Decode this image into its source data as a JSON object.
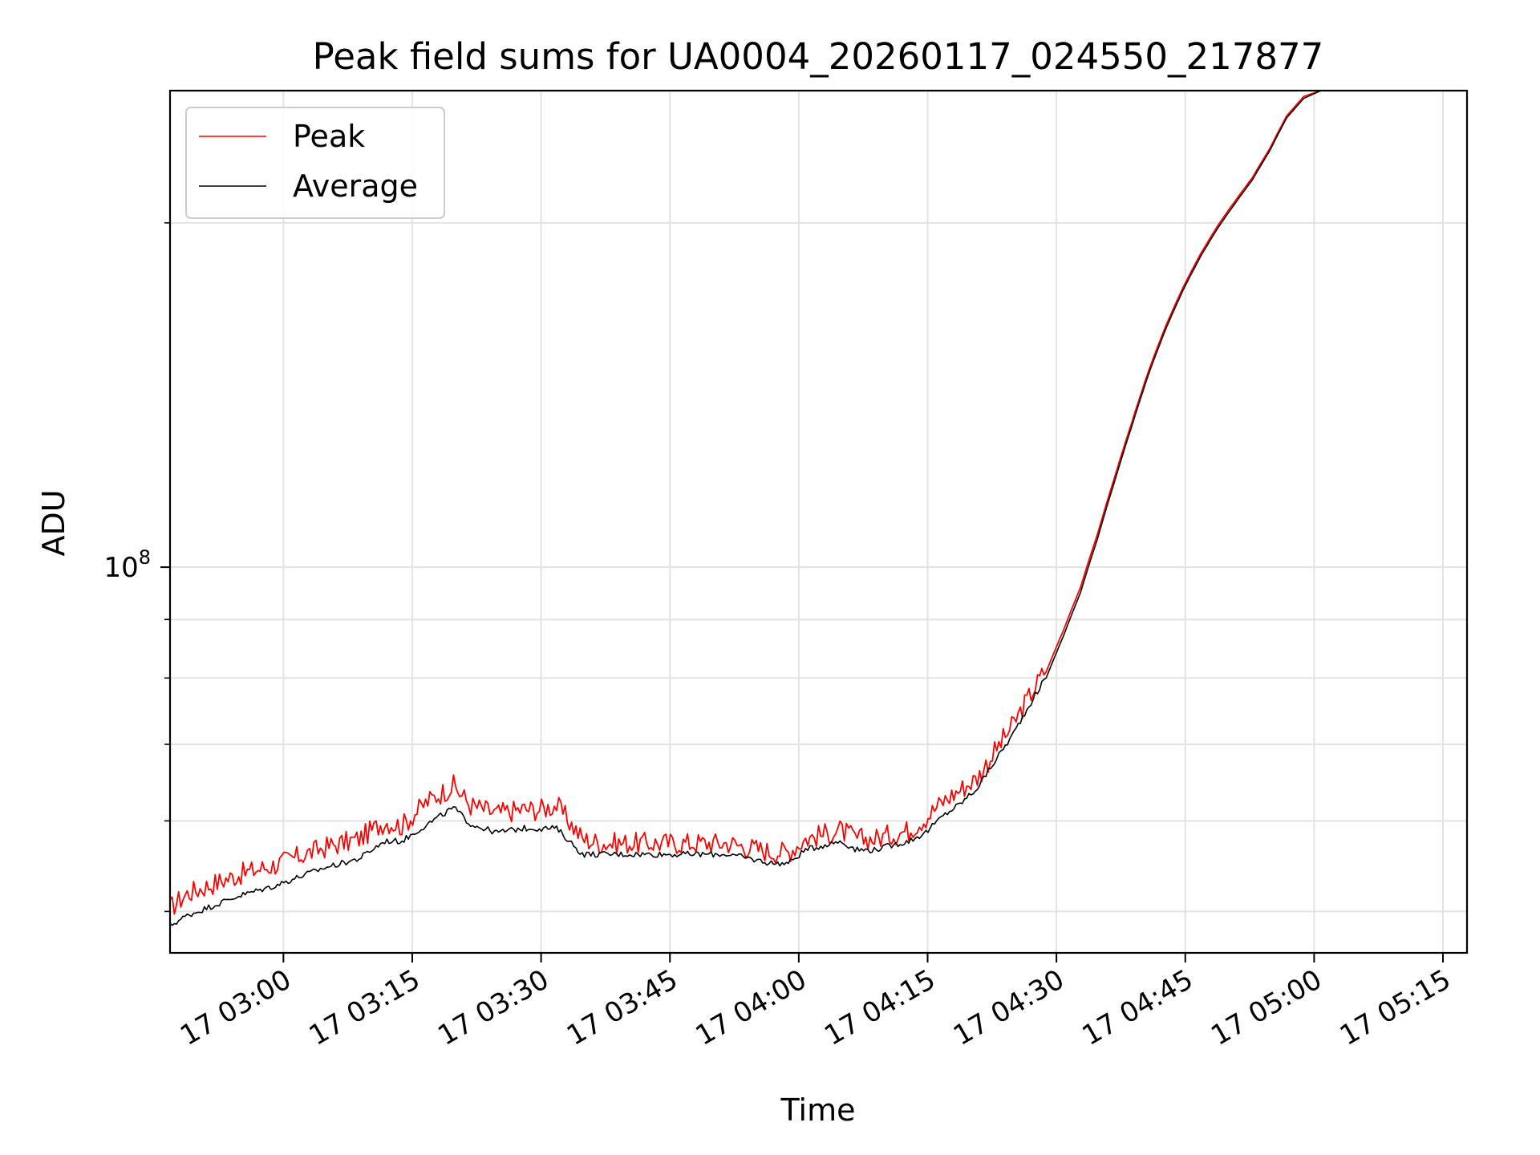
{
  "chart_data": {
    "type": "line",
    "title": "Peak field sums for UA0004_20260117_024550_217877",
    "xlabel": "Time",
    "ylabel": "ADU",
    "yscale": "log",
    "grid": true,
    "legend_position": "top-left",
    "x_unit": "minutes since 17 02:46 (2026-01-17)",
    "xlim": [
      0,
      151
    ],
    "ylim": [
      46000000,
      261000000
    ],
    "x_ticks": [
      {
        "x": 13.2,
        "label": "17 03:00"
      },
      {
        "x": 28.2,
        "label": "17 03:15"
      },
      {
        "x": 43.2,
        "label": "17 03:30"
      },
      {
        "x": 58.2,
        "label": "17 03:45"
      },
      {
        "x": 73.2,
        "label": "17 04:00"
      },
      {
        "x": 88.2,
        "label": "17 04:15"
      },
      {
        "x": 103.2,
        "label": "17 04:30"
      },
      {
        "x": 118.2,
        "label": "17 04:45"
      },
      {
        "x": 133.2,
        "label": "17 05:00"
      },
      {
        "x": 148.2,
        "label": "17 05:15"
      }
    ],
    "y_major_ticks": [
      {
        "value": 100000000,
        "label_base": "10",
        "label_exp": "8"
      }
    ],
    "y_minor_ticks": [
      50000000,
      60000000,
      70000000,
      80000000,
      90000000,
      200000000
    ],
    "series": [
      {
        "name": "Peak",
        "color": "#ff0000",
        "x": [
          0,
          2,
          5,
          8,
          12,
          15,
          18,
          20,
          22,
          25,
          27,
          30,
          33,
          35,
          38,
          41,
          43,
          45,
          48,
          50,
          55,
          60,
          65,
          70,
          72,
          74,
          76,
          78,
          80,
          82,
          84,
          86,
          88,
          90,
          92,
          94,
          96,
          98,
          100,
          102,
          104,
          106,
          108,
          110,
          112,
          114,
          116,
          118,
          120,
          122,
          124,
          126,
          128,
          130,
          132,
          134,
          136
        ],
        "values": [
          50.0,
          51.5,
          52.5,
          53.5,
          54.5,
          55.5,
          56.5,
          57.0,
          57.5,
          59.5,
          59.0,
          62.0,
          64.0,
          61.5,
          60.5,
          61.0,
          61.0,
          61.5,
          57.5,
          57.0,
          57.0,
          57.0,
          57.0,
          56.0,
          56.0,
          57.5,
          58.0,
          58.5,
          57.5,
          57.5,
          58.0,
          58.5,
          60.0,
          62.0,
          63.5,
          65.0,
          68.5,
          72.0,
          76.5,
          81.0,
          88.0,
          96.0,
          107.0,
          120.0,
          134.0,
          149.0,
          163.0,
          176.0,
          188.0,
          199.0,
          209.0,
          219.0,
          232.0,
          248.0,
          258.0,
          261.0,
          261.0
        ],
        "values_unit": "x 10^6 ADU"
      },
      {
        "name": "Average",
        "color": "#000000",
        "x": [
          0,
          2,
          5,
          8,
          12,
          15,
          18,
          20,
          22,
          25,
          27,
          30,
          33,
          35,
          38,
          41,
          43,
          45,
          48,
          50,
          55,
          60,
          65,
          70,
          72,
          74,
          76,
          78,
          80,
          82,
          84,
          86,
          88,
          90,
          92,
          94,
          96,
          98,
          100,
          102,
          104,
          106,
          108,
          110,
          112,
          114,
          116,
          118,
          120,
          122,
          124,
          126,
          128,
          130,
          132,
          134,
          136
        ],
        "values": [
          48.5,
          49.5,
          50.5,
          51.5,
          52.5,
          53.5,
          54.5,
          55.0,
          55.5,
          57.5,
          57.5,
          59.5,
          61.5,
          59.5,
          58.5,
          59.0,
          59.0,
          59.0,
          56.0,
          56.0,
          56.0,
          56.0,
          56.0,
          55.0,
          55.0,
          56.5,
          57.0,
          57.5,
          56.5,
          56.5,
          57.0,
          57.5,
          58.5,
          60.5,
          62.0,
          64.0,
          67.5,
          71.0,
          75.5,
          80.0,
          87.0,
          95.0,
          106.0,
          119.0,
          133.0,
          148.0,
          162.0,
          175.0,
          187.0,
          198.0,
          208.0,
          218.0,
          231.0,
          247.0,
          257.0,
          261.0,
          261.0
        ],
        "values_unit": "x 10^6 ADU"
      }
    ]
  }
}
